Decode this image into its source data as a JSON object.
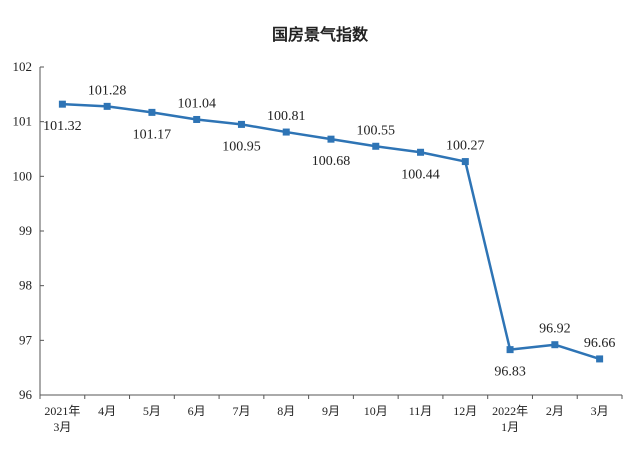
{
  "chart_data": {
    "type": "line",
    "title": "国房景气指数",
    "categories": [
      [
        "2021年",
        "3月"
      ],
      [
        "4月"
      ],
      [
        "5月"
      ],
      [
        "6月"
      ],
      [
        "7月"
      ],
      [
        "8月"
      ],
      [
        "9月"
      ],
      [
        "10月"
      ],
      [
        "11月"
      ],
      [
        "12月"
      ],
      [
        "2022年",
        "1月"
      ],
      [
        "2月"
      ],
      [
        "3月"
      ]
    ],
    "values": [
      101.32,
      101.28,
      101.17,
      101.04,
      100.95,
      100.81,
      100.68,
      100.55,
      100.44,
      100.27,
      96.83,
      96.92,
      96.66
    ],
    "data_labels": [
      "101.32",
      "101.28",
      "101.17",
      "101.04",
      "100.95",
      "100.81",
      "100.68",
      "100.55",
      "100.44",
      "100.27",
      "96.83",
      "96.92",
      "96.66"
    ],
    "label_positions": [
      "below",
      "above",
      "below",
      "above",
      "below",
      "above",
      "below",
      "above",
      "below",
      "above",
      "below",
      "above",
      "above"
    ],
    "ylim": [
      96,
      102
    ],
    "yticks": [
      96,
      97,
      98,
      99,
      100,
      101,
      102
    ],
    "grid": false,
    "legend": "none",
    "line_color": "#2e74b5"
  }
}
